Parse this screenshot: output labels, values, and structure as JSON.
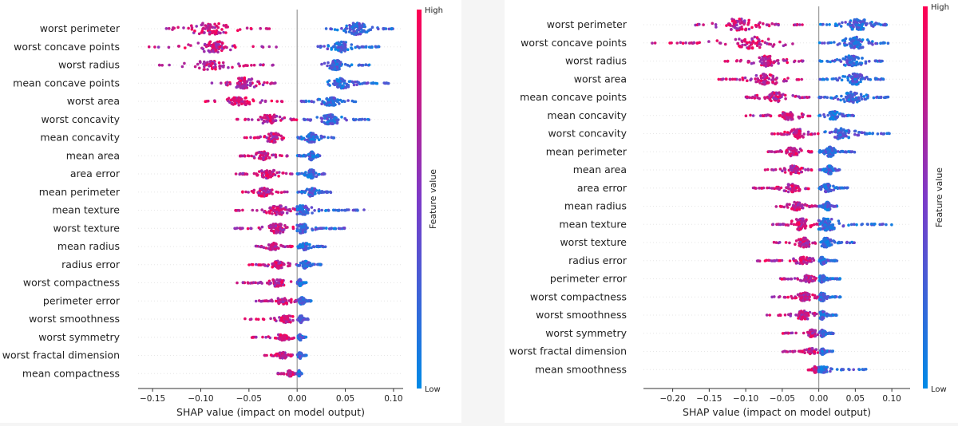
{
  "chart_data": [
    {
      "type": "scatter",
      "subtype": "shap-beeswarm",
      "xlabel": "SHAP value (impact on model output)",
      "xlim": [
        -0.165,
        0.11
      ],
      "xticks": [
        -0.15,
        -0.1,
        -0.05,
        0.0,
        0.05,
        0.1
      ],
      "xtick_labels": [
        "−0.15",
        "−0.10",
        "−0.05",
        "0.00",
        "0.05",
        "0.10"
      ],
      "colorbar": {
        "label": "Feature value",
        "high": "High",
        "low": "Low"
      },
      "features": [
        {
          "name": "worst perimeter",
          "high_range": [
            -0.14,
            -0.02
          ],
          "high_peak": -0.09,
          "low_range": [
            0.03,
            0.1
          ],
          "low_peak": 0.062,
          "spread": 1.0
        },
        {
          "name": "worst concave points",
          "high_range": [
            -0.155,
            -0.02
          ],
          "high_peak": -0.085,
          "low_range": [
            0.02,
            0.085
          ],
          "low_peak": 0.045,
          "spread": 0.9
        },
        {
          "name": "worst radius",
          "high_range": [
            -0.145,
            -0.025
          ],
          "high_peak": -0.09,
          "low_range": [
            0.025,
            0.075
          ],
          "low_peak": 0.04,
          "spread": 0.8
        },
        {
          "name": "mean concave points",
          "high_range": [
            -0.1,
            -0.02
          ],
          "high_peak": -0.055,
          "low_range": [
            0.03,
            0.095
          ],
          "low_peak": 0.045,
          "spread": 0.9
        },
        {
          "name": "worst area",
          "high_range": [
            -0.1,
            -0.01
          ],
          "high_peak": -0.06,
          "low_range": [
            0.0,
            0.065
          ],
          "low_peak": 0.035,
          "spread": 0.7
        },
        {
          "name": "worst concavity",
          "high_range": [
            -0.065,
            0.0
          ],
          "high_peak": -0.028,
          "low_range": [
            0.0,
            0.075
          ],
          "low_peak": 0.035,
          "spread": 0.8
        },
        {
          "name": "mean concavity",
          "high_range": [
            -0.055,
            -0.01
          ],
          "high_peak": -0.025,
          "low_range": [
            0.0,
            0.04
          ],
          "low_peak": 0.015,
          "spread": 0.8
        },
        {
          "name": "mean area",
          "high_range": [
            -0.06,
            -0.01
          ],
          "high_peak": -0.035,
          "low_range": [
            0.0,
            0.025
          ],
          "low_peak": 0.015,
          "spread": 0.7
        },
        {
          "name": "area error",
          "high_range": [
            -0.065,
            -0.005
          ],
          "high_peak": -0.03,
          "low_range": [
            0.0,
            0.03
          ],
          "low_peak": 0.015,
          "spread": 0.7
        },
        {
          "name": "mean perimeter",
          "high_range": [
            -0.06,
            -0.01
          ],
          "high_peak": -0.035,
          "low_range": [
            0.0,
            0.035
          ],
          "low_peak": 0.015,
          "spread": 0.7
        },
        {
          "name": "mean texture",
          "high_range": [
            -0.065,
            0.0
          ],
          "high_peak": -0.02,
          "low_range": [
            0.0,
            0.07
          ],
          "low_peak": 0.005,
          "spread": 0.8
        },
        {
          "name": "worst texture",
          "high_range": [
            -0.065,
            0.0
          ],
          "high_peak": -0.02,
          "low_range": [
            0.0,
            0.05
          ],
          "low_peak": 0.005,
          "spread": 0.8
        },
        {
          "name": "mean radius",
          "high_range": [
            -0.045,
            -0.005
          ],
          "high_peak": -0.025,
          "low_range": [
            0.0,
            0.03
          ],
          "low_peak": 0.008,
          "spread": 0.6
        },
        {
          "name": "radius error",
          "high_range": [
            -0.05,
            0.0
          ],
          "high_peak": -0.02,
          "low_range": [
            0.0,
            0.025
          ],
          "low_peak": 0.008,
          "spread": 0.6
        },
        {
          "name": "worst compactness",
          "high_range": [
            -0.065,
            -0.005
          ],
          "high_peak": -0.02,
          "low_range": [
            0.0,
            0.01
          ],
          "low_peak": 0.003,
          "spread": 0.6
        },
        {
          "name": "perimeter error",
          "high_range": [
            -0.045,
            0.0
          ],
          "high_peak": -0.015,
          "low_range": [
            0.0,
            0.015
          ],
          "low_peak": 0.005,
          "spread": 0.6
        },
        {
          "name": "worst smoothness",
          "high_range": [
            -0.055,
            0.0
          ],
          "high_peak": -0.012,
          "low_range": [
            0.0,
            0.012
          ],
          "low_peak": 0.004,
          "spread": 0.6
        },
        {
          "name": "worst symmetry",
          "high_range": [
            -0.05,
            0.0
          ],
          "high_peak": -0.015,
          "low_range": [
            0.0,
            0.01
          ],
          "low_peak": 0.003,
          "spread": 0.5
        },
        {
          "name": "worst fractal dimension",
          "high_range": [
            -0.035,
            0.0
          ],
          "high_peak": -0.015,
          "low_range": [
            0.0,
            0.01
          ],
          "low_peak": 0.003,
          "spread": 0.5
        },
        {
          "name": "mean compactness",
          "high_range": [
            -0.02,
            0.0
          ],
          "high_peak": -0.008,
          "low_range": [
            0.0,
            0.005
          ],
          "low_peak": 0.002,
          "spread": 0.5
        }
      ]
    },
    {
      "type": "scatter",
      "subtype": "shap-beeswarm",
      "xlabel": "SHAP value (impact on model output)",
      "xlim": [
        -0.24,
        0.125
      ],
      "xticks": [
        -0.2,
        -0.15,
        -0.1,
        -0.05,
        0.0,
        0.05,
        0.1
      ],
      "xtick_labels": [
        "−0.20",
        "−0.15",
        "−0.10",
        "−0.05",
        "0.00",
        "0.05",
        "0.10"
      ],
      "colorbar": {
        "label": "Feature value",
        "high": "High",
        "low": "Low"
      },
      "features": [
        {
          "name": "worst perimeter",
          "high_range": [
            -0.17,
            -0.02
          ],
          "high_peak": -0.11,
          "low_range": [
            0.0,
            0.1
          ],
          "low_peak": 0.055,
          "spread": 1.0
        },
        {
          "name": "worst concave points",
          "high_range": [
            -0.23,
            -0.02
          ],
          "high_peak": -0.09,
          "low_range": [
            0.0,
            0.095
          ],
          "low_peak": 0.05,
          "spread": 1.0
        },
        {
          "name": "worst radius",
          "high_range": [
            -0.135,
            -0.02
          ],
          "high_peak": -0.07,
          "low_range": [
            0.0,
            0.09
          ],
          "low_peak": 0.045,
          "spread": 0.9
        },
        {
          "name": "worst area",
          "high_range": [
            -0.145,
            -0.02
          ],
          "high_peak": -0.07,
          "low_range": [
            0.0,
            0.09
          ],
          "low_peak": 0.05,
          "spread": 0.9
        },
        {
          "name": "mean concave points",
          "high_range": [
            -0.115,
            -0.01
          ],
          "high_peak": -0.06,
          "low_range": [
            0.0,
            0.095
          ],
          "low_peak": 0.045,
          "spread": 0.9
        },
        {
          "name": "mean concavity",
          "high_range": [
            -0.1,
            -0.01
          ],
          "high_peak": -0.04,
          "low_range": [
            0.0,
            0.05
          ],
          "low_peak": 0.02,
          "spread": 0.7
        },
        {
          "name": "worst concavity",
          "high_range": [
            -0.065,
            0.0
          ],
          "high_peak": -0.03,
          "low_range": [
            0.0,
            0.105
          ],
          "low_peak": 0.03,
          "spread": 0.9
        },
        {
          "name": "mean perimeter",
          "high_range": [
            -0.07,
            -0.005
          ],
          "high_peak": -0.035,
          "low_range": [
            0.0,
            0.05
          ],
          "low_peak": 0.015,
          "spread": 0.8
        },
        {
          "name": "mean area",
          "high_range": [
            -0.075,
            -0.005
          ],
          "high_peak": -0.035,
          "low_range": [
            0.0,
            0.03
          ],
          "low_peak": 0.015,
          "spread": 0.7
        },
        {
          "name": "area error",
          "high_range": [
            -0.09,
            -0.005
          ],
          "high_peak": -0.035,
          "low_range": [
            0.0,
            0.04
          ],
          "low_peak": 0.012,
          "spread": 0.7
        },
        {
          "name": "mean radius",
          "high_range": [
            -0.065,
            0.0
          ],
          "high_peak": -0.03,
          "low_range": [
            0.0,
            0.025
          ],
          "low_peak": 0.012,
          "spread": 0.7
        },
        {
          "name": "mean texture",
          "high_range": [
            -0.065,
            0.0
          ],
          "high_peak": -0.025,
          "low_range": [
            0.0,
            0.1
          ],
          "low_peak": 0.01,
          "spread": 1.0
        },
        {
          "name": "worst texture",
          "high_range": [
            -0.065,
            0.0
          ],
          "high_peak": -0.02,
          "low_range": [
            0.0,
            0.05
          ],
          "low_peak": 0.01,
          "spread": 0.8
        },
        {
          "name": "radius error",
          "high_range": [
            -0.085,
            0.0
          ],
          "high_peak": -0.02,
          "low_range": [
            0.0,
            0.025
          ],
          "low_peak": 0.005,
          "spread": 0.6
        },
        {
          "name": "perimeter error",
          "high_range": [
            -0.055,
            0.0
          ],
          "high_peak": -0.015,
          "low_range": [
            0.0,
            0.03
          ],
          "low_peak": 0.005,
          "spread": 0.6
        },
        {
          "name": "worst compactness",
          "high_range": [
            -0.065,
            0.0
          ],
          "high_peak": -0.02,
          "low_range": [
            0.0,
            0.03
          ],
          "low_peak": 0.005,
          "spread": 0.7
        },
        {
          "name": "worst smoothness",
          "high_range": [
            -0.075,
            0.0
          ],
          "high_peak": -0.02,
          "low_range": [
            0.0,
            0.025
          ],
          "low_peak": 0.005,
          "spread": 0.7
        },
        {
          "name": "worst symmetry",
          "high_range": [
            -0.05,
            0.0
          ],
          "high_peak": -0.01,
          "low_range": [
            0.0,
            0.02
          ],
          "low_peak": 0.005,
          "spread": 0.6
        },
        {
          "name": "worst fractal dimension",
          "high_range": [
            -0.05,
            0.0
          ],
          "high_peak": -0.01,
          "low_range": [
            0.0,
            0.02
          ],
          "low_peak": 0.005,
          "spread": 0.5
        },
        {
          "name": "mean smoothness",
          "high_range": [
            -0.015,
            0.0
          ],
          "high_peak": -0.005,
          "low_range": [
            0.0,
            0.07
          ],
          "low_peak": 0.005,
          "spread": 0.5
        }
      ]
    }
  ]
}
